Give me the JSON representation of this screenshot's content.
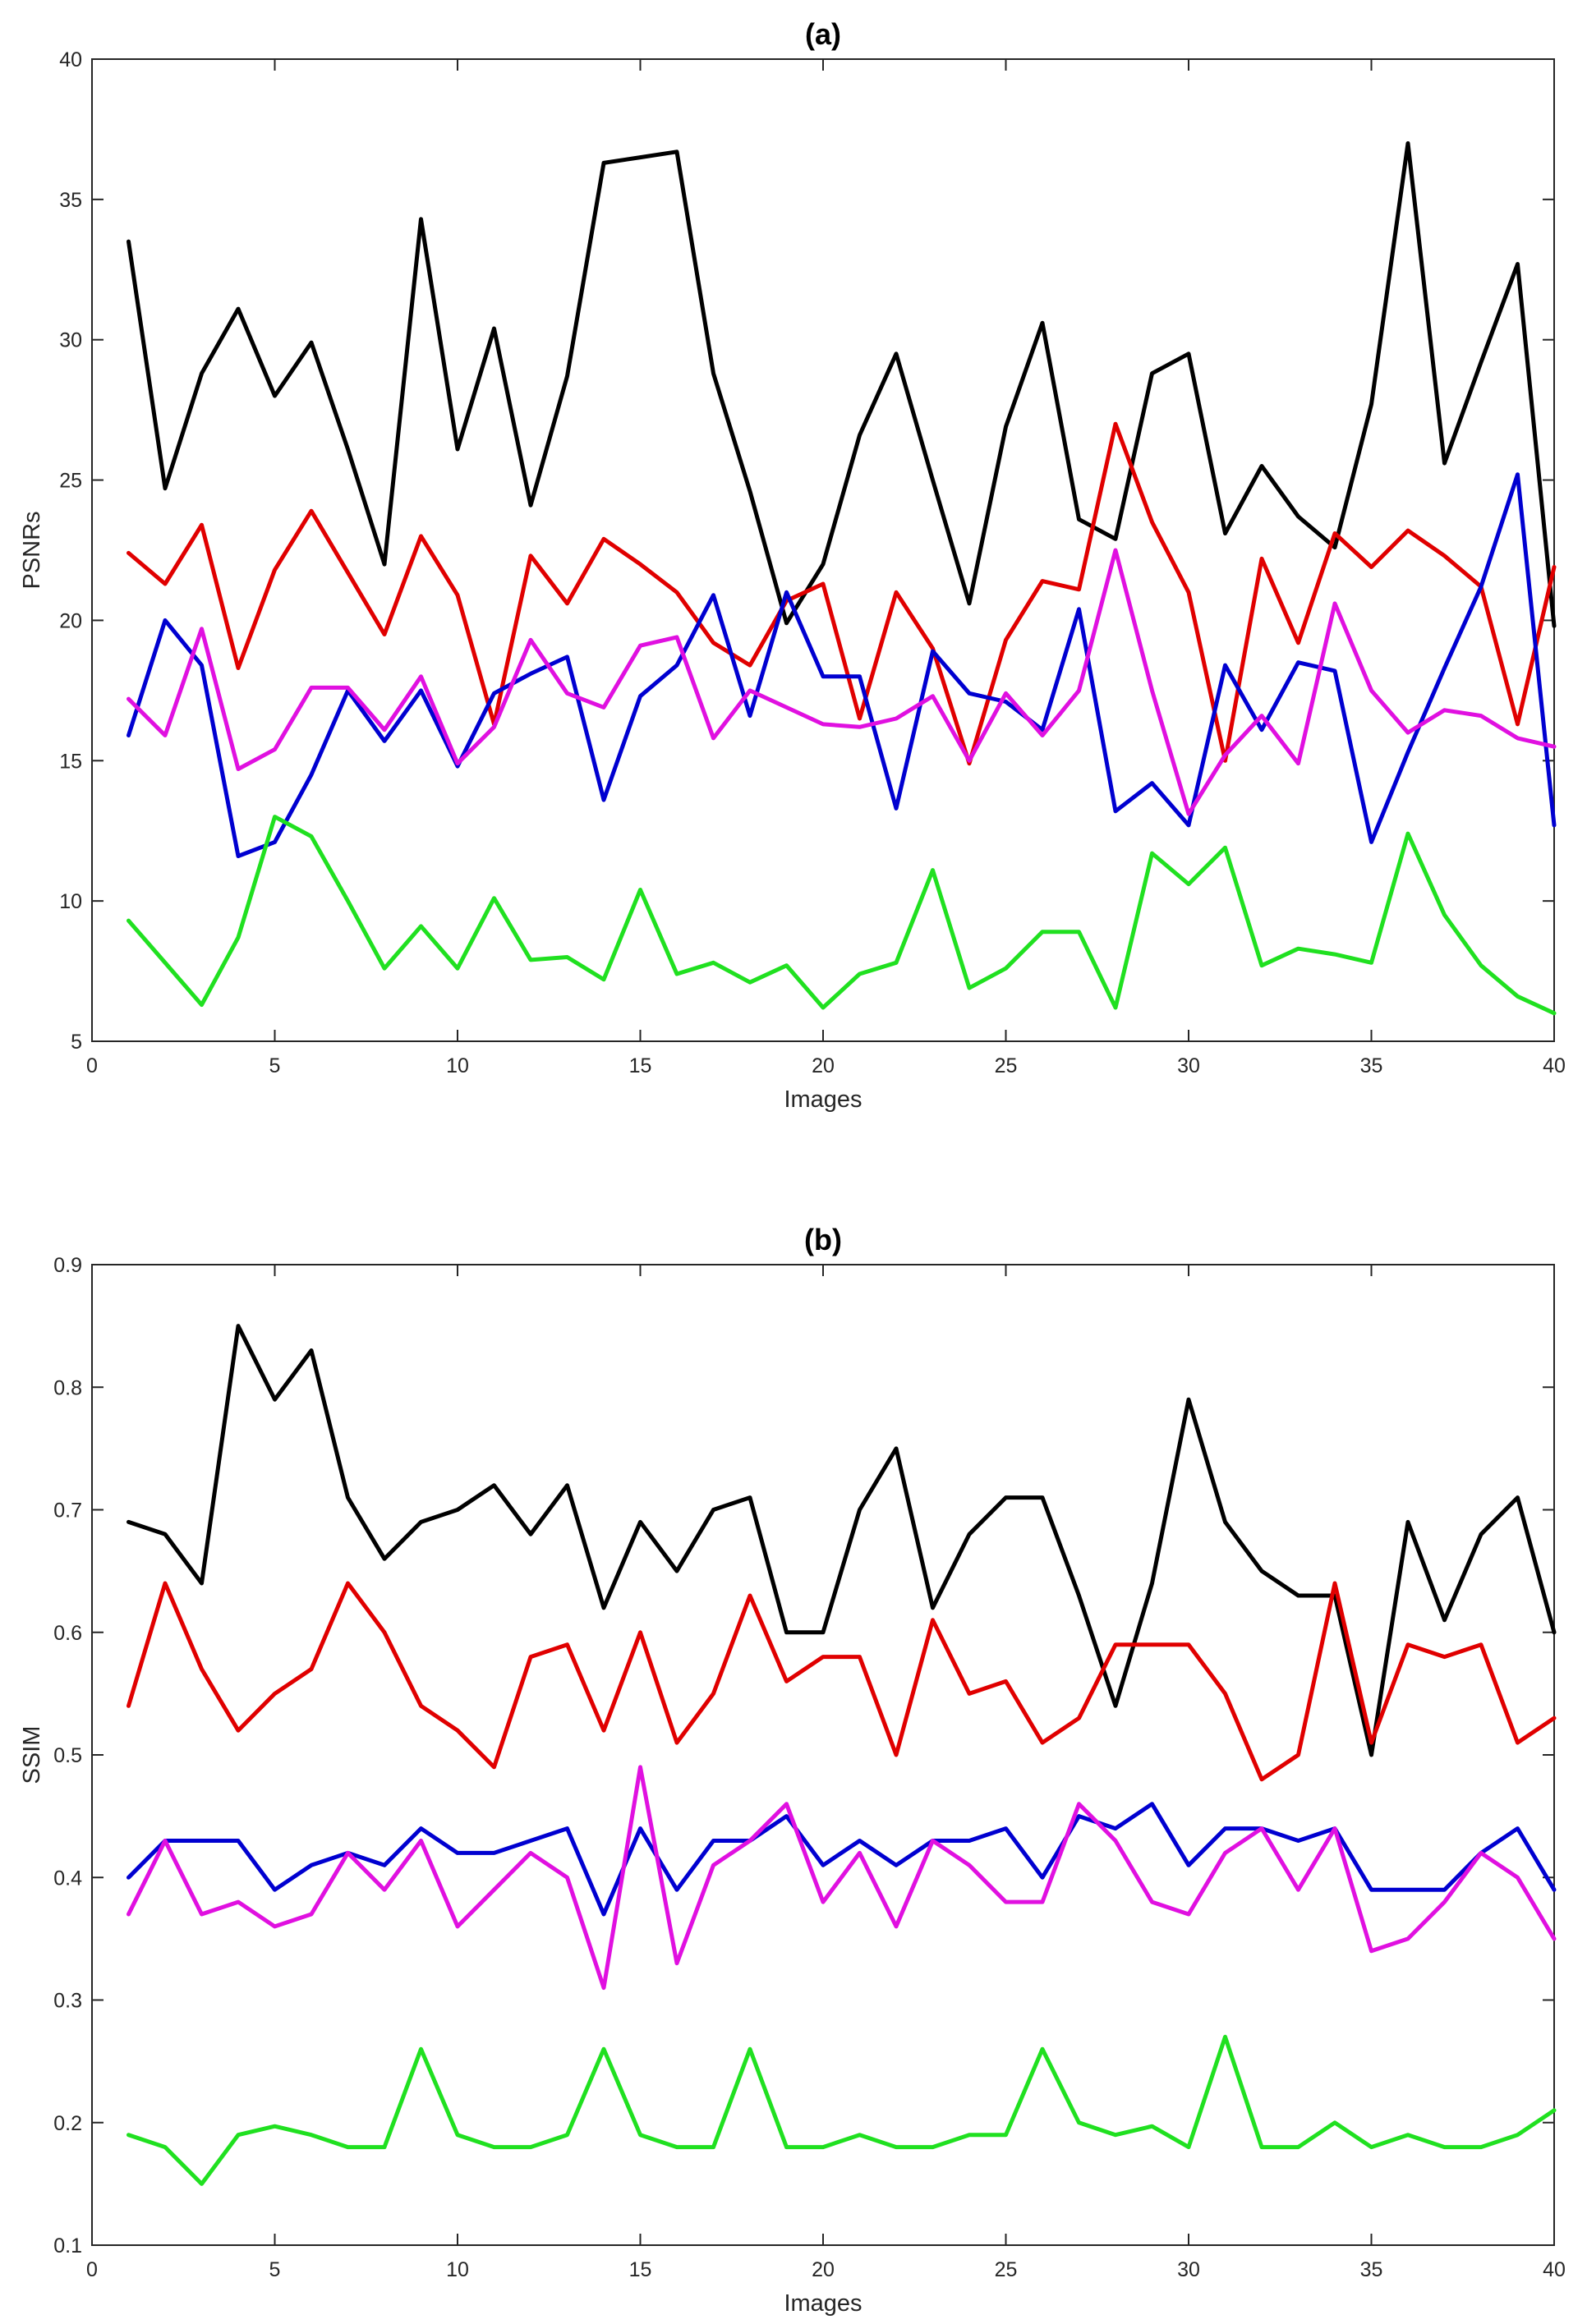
{
  "chart_data": [
    {
      "type": "line",
      "title": "(a)",
      "xlabel": "Images",
      "ylabel": "PSNRs",
      "xlim": [
        0,
        40
      ],
      "ylim": [
        5,
        40
      ],
      "xticks": [
        0,
        5,
        10,
        15,
        20,
        25,
        30,
        35,
        40
      ],
      "yticks": [
        5,
        10,
        15,
        20,
        25,
        30,
        35,
        40
      ],
      "grid": false,
      "x": [
        1,
        2,
        3,
        4,
        5,
        6,
        7,
        8,
        9,
        10,
        11,
        12,
        13,
        14,
        15,
        16,
        17,
        18,
        19,
        20,
        21,
        22,
        23,
        24,
        25,
        26,
        27,
        28,
        29,
        30,
        31,
        32,
        33,
        34,
        35,
        36,
        37,
        38,
        39,
        40
      ],
      "series": [
        {
          "name": "black",
          "color": "#000000",
          "values": [
            33.5,
            24.7,
            28.8,
            31.1,
            28.0,
            29.9,
            26.1,
            22.0,
            34.3,
            26.1,
            30.4,
            24.1,
            28.7,
            36.3,
            36.5,
            36.7,
            28.8,
            24.6,
            19.9,
            22.0,
            26.6,
            29.5,
            25.0,
            20.6,
            26.9,
            30.6,
            23.6,
            22.9,
            28.8,
            29.5,
            23.1,
            25.5,
            23.7,
            22.6,
            27.7,
            37.0,
            25.6,
            29.2,
            32.7,
            19.8
          ]
        },
        {
          "name": "red",
          "color": "#e00000",
          "values": [
            22.4,
            21.3,
            23.4,
            18.3,
            21.8,
            23.9,
            21.7,
            19.5,
            23.0,
            20.9,
            16.3,
            22.3,
            20.6,
            22.9,
            22.0,
            21.0,
            19.2,
            18.4,
            20.7,
            21.3,
            16.5,
            21.0,
            19.0,
            14.9,
            19.3,
            21.4,
            21.1,
            27.0,
            23.5,
            21.0,
            15.0,
            22.2,
            19.2,
            23.1,
            21.9,
            23.2,
            22.3,
            21.2,
            16.3,
            21.9
          ]
        },
        {
          "name": "blue",
          "color": "#0000d0",
          "values": [
            15.9,
            20.0,
            18.4,
            11.6,
            12.1,
            14.5,
            17.5,
            15.7,
            17.5,
            14.8,
            17.4,
            18.1,
            18.7,
            13.6,
            17.3,
            18.4,
            20.9,
            16.6,
            21.0,
            18.0,
            18.0,
            13.3,
            18.9,
            17.4,
            17.1,
            16.1,
            20.4,
            13.2,
            14.2,
            12.7,
            18.4,
            16.1,
            18.5,
            18.2,
            12.1,
            15.3,
            18.3,
            21.2,
            25.2,
            12.7
          ]
        },
        {
          "name": "magenta",
          "color": "#e010e0",
          "values": [
            17.2,
            15.9,
            19.7,
            14.7,
            15.4,
            17.6,
            17.6,
            16.1,
            18.0,
            14.9,
            16.2,
            19.3,
            17.4,
            16.9,
            19.1,
            19.4,
            15.8,
            17.5,
            16.9,
            16.3,
            16.2,
            16.5,
            17.3,
            15.0,
            17.4,
            15.9,
            17.5,
            22.5,
            17.5,
            13.1,
            15.2,
            16.6,
            14.9,
            20.6,
            17.5,
            16.0,
            16.8,
            16.6,
            15.8,
            15.5
          ]
        },
        {
          "name": "green",
          "color": "#20e020",
          "values": [
            9.3,
            7.8,
            6.3,
            8.7,
            13.0,
            12.3,
            10.0,
            7.6,
            9.1,
            7.6,
            10.1,
            7.9,
            8.0,
            7.2,
            10.4,
            7.4,
            7.8,
            7.1,
            7.7,
            6.2,
            7.4,
            7.8,
            11.1,
            6.9,
            7.6,
            8.9,
            8.9,
            6.2,
            11.7,
            10.6,
            11.9,
            7.7,
            8.3,
            8.1,
            7.8,
            12.4,
            9.5,
            7.7,
            6.6,
            6.0
          ]
        }
      ]
    },
    {
      "type": "line",
      "title": "(b)",
      "xlabel": "Images",
      "ylabel": "SSIM",
      "xlim": [
        0,
        40
      ],
      "ylim": [
        0.1,
        0.9
      ],
      "xticks": [
        0,
        5,
        10,
        15,
        20,
        25,
        30,
        35,
        40
      ],
      "yticks": [
        0.1,
        0.2,
        0.3,
        0.4,
        0.5,
        0.6,
        0.7,
        0.8,
        0.9
      ],
      "grid": false,
      "x": [
        1,
        2,
        3,
        4,
        5,
        6,
        7,
        8,
        9,
        10,
        11,
        12,
        13,
        14,
        15,
        16,
        17,
        18,
        19,
        20,
        21,
        22,
        23,
        24,
        25,
        26,
        27,
        28,
        29,
        30,
        31,
        32,
        33,
        34,
        35,
        36,
        37,
        38,
        39,
        40
      ],
      "series": [
        {
          "name": "black",
          "color": "#000000",
          "values": [
            0.69,
            0.68,
            0.64,
            0.85,
            0.79,
            0.83,
            0.71,
            0.66,
            0.69,
            0.7,
            0.72,
            0.68,
            0.72,
            0.62,
            0.69,
            0.65,
            0.7,
            0.71,
            0.6,
            0.6,
            0.7,
            0.75,
            0.62,
            0.68,
            0.71,
            0.71,
            0.63,
            0.54,
            0.64,
            0.79,
            0.69,
            0.65,
            0.63,
            0.63,
            0.5,
            0.69,
            0.61,
            0.68,
            0.71,
            0.6
          ]
        },
        {
          "name": "red",
          "color": "#e00000",
          "values": [
            0.54,
            0.64,
            0.57,
            0.52,
            0.55,
            0.57,
            0.64,
            0.6,
            0.54,
            0.52,
            0.49,
            0.58,
            0.59,
            0.52,
            0.6,
            0.51,
            0.55,
            0.63,
            0.56,
            0.58,
            0.58,
            0.5,
            0.61,
            0.55,
            0.56,
            0.51,
            0.53,
            0.59,
            0.59,
            0.59,
            0.55,
            0.48,
            0.5,
            0.64,
            0.51,
            0.59,
            0.58,
            0.59,
            0.51,
            0.53
          ]
        },
        {
          "name": "blue",
          "color": "#0000d0",
          "values": [
            0.4,
            0.43,
            0.43,
            0.43,
            0.39,
            0.41,
            0.42,
            0.41,
            0.44,
            0.42,
            0.42,
            0.43,
            0.44,
            0.37,
            0.44,
            0.39,
            0.43,
            0.43,
            0.45,
            0.41,
            0.43,
            0.41,
            0.43,
            0.43,
            0.44,
            0.4,
            0.45,
            0.44,
            0.46,
            0.41,
            0.44,
            0.44,
            0.43,
            0.44,
            0.39,
            0.39,
            0.39,
            0.42,
            0.44,
            0.39
          ]
        },
        {
          "name": "magenta",
          "color": "#e010e0",
          "values": [
            0.37,
            0.43,
            0.37,
            0.38,
            0.36,
            0.37,
            0.42,
            0.39,
            0.43,
            0.36,
            0.39,
            0.42,
            0.4,
            0.31,
            0.49,
            0.33,
            0.41,
            0.43,
            0.46,
            0.38,
            0.42,
            0.36,
            0.43,
            0.41,
            0.38,
            0.38,
            0.46,
            0.43,
            0.38,
            0.37,
            0.42,
            0.44,
            0.39,
            0.44,
            0.34,
            0.35,
            0.38,
            0.42,
            0.4,
            0.35
          ]
        },
        {
          "name": "green",
          "color": "#20e020",
          "values": [
            0.19,
            0.18,
            0.15,
            0.19,
            0.197,
            0.19,
            0.18,
            0.18,
            0.26,
            0.19,
            0.18,
            0.18,
            0.19,
            0.26,
            0.19,
            0.18,
            0.18,
            0.26,
            0.18,
            0.18,
            0.19,
            0.18,
            0.18,
            0.19,
            0.19,
            0.26,
            0.2,
            0.19,
            0.197,
            0.18,
            0.27,
            0.18,
            0.18,
            0.2,
            0.18,
            0.19,
            0.18,
            0.18,
            0.19,
            0.21
          ]
        }
      ]
    }
  ]
}
